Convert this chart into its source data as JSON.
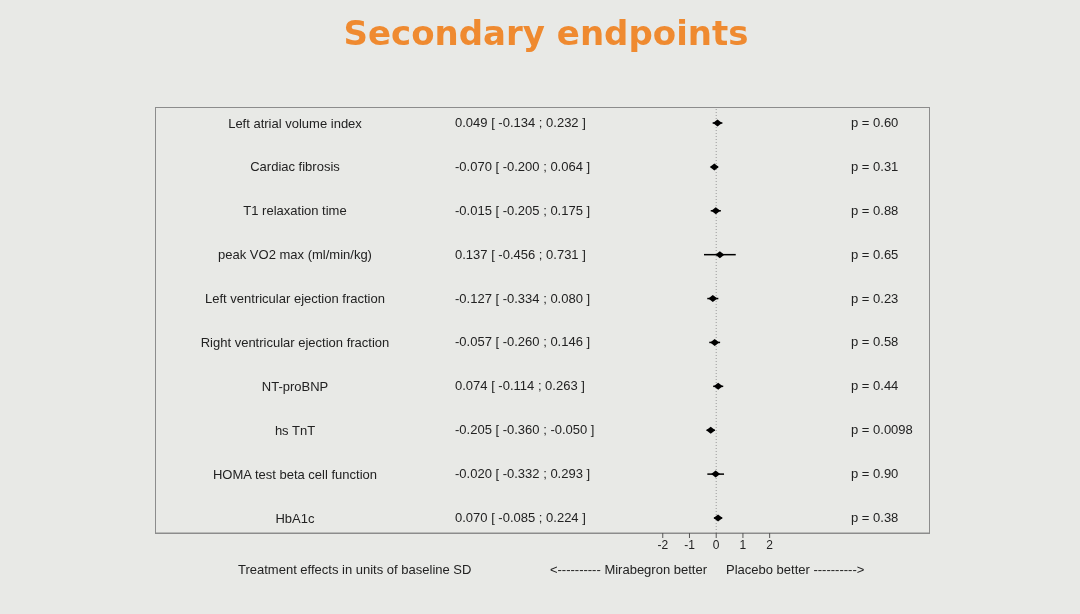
{
  "chart_data": {
    "type": "scatter",
    "orientation": "horizontal",
    "title": "Secondary endpoints",
    "xlabel": "Treatment effects in units of baseline SD",
    "categories": [
      "Left atrial volume index",
      "Cardiac fibrosis",
      "T1 relaxation time",
      "peak VO2 max (ml/min/kg)",
      "Left ventricular ejection fraction",
      "Right ventricular ejection fraction",
      "NT-proBNP",
      "hs TnT",
      "HOMA test beta cell function",
      "HbA1c"
    ],
    "values": [
      0.049,
      -0.07,
      -0.015,
      0.137,
      -0.127,
      -0.057,
      0.074,
      -0.205,
      -0.02,
      0.07
    ],
    "errors": [
      [
        -0.134,
        0.232
      ],
      [
        -0.2,
        0.064
      ],
      [
        -0.205,
        0.175
      ],
      [
        -0.456,
        0.731
      ],
      [
        -0.334,
        0.08
      ],
      [
        -0.26,
        0.146
      ],
      [
        -0.114,
        0.263
      ],
      [
        -0.36,
        -0.05
      ],
      [
        -0.332,
        0.293
      ],
      [
        -0.085,
        0.224
      ]
    ],
    "color": "#000000",
    "marker": "diamond",
    "xlim": [
      -21,
      8
    ],
    "xticks": [
      -2,
      -1,
      0,
      1,
      2
    ],
    "ref_lines": [
      {
        "axis": "x",
        "value": 0,
        "color": "#999999",
        "line_style": "dotted"
      }
    ],
    "annotations": [
      "0.049 [ -0.134 ; 0.232 ]",
      "-0.070 [ -0.200 ; 0.064 ]",
      "-0.015 [ -0.205 ; 0.175 ]",
      "0.137 [ -0.456 ; 0.731 ]",
      "-0.127 [ -0.334 ; 0.080 ]",
      "-0.057 [ -0.260 ; 0.146 ]",
      "0.074 [ -0.114 ; 0.263 ]",
      "-0.205 [ -0.360 ; -0.050 ]",
      "-0.020 [ -0.332 ; 0.293 ]",
      "0.070 [ -0.085 ; 0.224 ]",
      "p = 0.60",
      "p = 0.31",
      "p = 0.88",
      "p = 0.65",
      "p = 0.23",
      "p = 0.58",
      "p = 0.44",
      "p = 0.0098",
      "p = 0.90",
      "p = 0.38",
      "<---------- Mirabegron better",
      "Placebo better ---------->"
    ]
  }
}
